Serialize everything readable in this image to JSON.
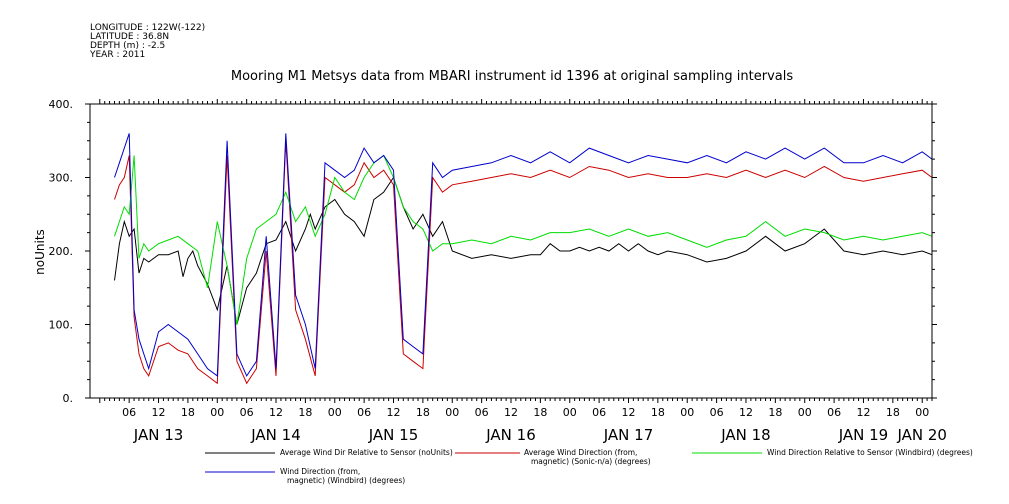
{
  "header": {
    "meta_lines": [
      "LONGITUDE : 122W(-122)",
      "LATITUDE : 36.8N",
      "DEPTH (m) : -2.5",
      "YEAR : 2011"
    ]
  },
  "chart_data": {
    "type": "line",
    "title": "Mooring M1 Metsys data from MBARI instrument id 1396 at original sampling intervals",
    "ylabel": "noUnits",
    "ylim": [
      0,
      400
    ],
    "yticks": [
      0,
      100,
      200,
      300,
      400
    ],
    "ytick_labels": [
      "0.",
      "100.",
      "200.",
      "300.",
      "400."
    ],
    "xlim_hours": [
      -21,
      0
    ],
    "x_unit": "hours from 2011-01-13 00:00",
    "hour_ticks": [
      {
        "h": 6,
        "label": "06"
      },
      {
        "h": 12,
        "label": "12"
      },
      {
        "h": 18,
        "label": "18"
      },
      {
        "h": 24,
        "label": "00"
      },
      {
        "h": 30,
        "label": "06"
      },
      {
        "h": 36,
        "label": "12"
      },
      {
        "h": 42,
        "label": "18"
      },
      {
        "h": 48,
        "label": "00"
      },
      {
        "h": 54,
        "label": "06"
      },
      {
        "h": 60,
        "label": "12"
      },
      {
        "h": 66,
        "label": "18"
      },
      {
        "h": 72,
        "label": "00"
      },
      {
        "h": 78,
        "label": "06"
      },
      {
        "h": 84,
        "label": "12"
      },
      {
        "h": 90,
        "label": "18"
      },
      {
        "h": 96,
        "label": "00"
      },
      {
        "h": 102,
        "label": "06"
      },
      {
        "h": 108,
        "label": "12"
      },
      {
        "h": 114,
        "label": "18"
      },
      {
        "h": 120,
        "label": "00"
      },
      {
        "h": 126,
        "label": "06"
      },
      {
        "h": 132,
        "label": "12"
      },
      {
        "h": 138,
        "label": "18"
      },
      {
        "h": 144,
        "label": "00"
      },
      {
        "h": 150,
        "label": "06"
      },
      {
        "h": 156,
        "label": "12"
      },
      {
        "h": 162,
        "label": "18"
      },
      {
        "h": 168,
        "label": "00"
      }
    ],
    "day_labels": [
      {
        "h": 12,
        "label": "JAN 13"
      },
      {
        "h": 36,
        "label": "JAN 14"
      },
      {
        "h": 60,
        "label": "JAN 15"
      },
      {
        "h": 84,
        "label": "JAN 16"
      },
      {
        "h": 108,
        "label": "JAN 17"
      },
      {
        "h": 132,
        "label": "JAN 18"
      },
      {
        "h": 156,
        "label": "JAN 19"
      },
      {
        "h": 168,
        "label": "JAN 20"
      }
    ],
    "series": [
      {
        "name": "Average Wind Dir Relative to Sensor (noUnits)",
        "color": "#000000",
        "x": [
          3,
          4,
          5,
          6,
          7,
          8,
          9,
          10,
          12,
          14,
          16,
          17,
          18,
          19,
          20,
          22,
          24,
          26,
          28,
          30,
          32,
          34,
          36,
          38,
          40,
          42,
          43,
          44,
          46,
          48,
          50,
          52,
          54,
          56,
          58,
          60,
          62,
          64,
          66,
          68,
          70,
          72,
          76,
          80,
          84,
          88,
          90,
          92,
          94,
          96,
          98,
          100,
          102,
          104,
          106,
          108,
          110,
          112,
          114,
          116,
          120,
          124,
          128,
          132,
          136,
          140,
          144,
          148,
          152,
          156,
          160,
          164,
          168,
          170
        ],
        "y": [
          160,
          210,
          240,
          220,
          230,
          170,
          190,
          185,
          195,
          195,
          200,
          165,
          190,
          200,
          180,
          155,
          120,
          180,
          100,
          150,
          170,
          210,
          215,
          240,
          200,
          230,
          250,
          230,
          260,
          270,
          250,
          240,
          220,
          270,
          280,
          300,
          260,
          230,
          250,
          220,
          240,
          200,
          190,
          195,
          190,
          195,
          195,
          210,
          200,
          200,
          205,
          200,
          205,
          200,
          210,
          200,
          210,
          200,
          195,
          200,
          195,
          185,
          190,
          200,
          220,
          200,
          210,
          230,
          200,
          195,
          200,
          195,
          200,
          195
        ]
      },
      {
        "name": "Average Wind Direction (from, magnetic) (Sonic-n/a) (degrees)",
        "color": "#cc0000",
        "x": [
          3,
          4,
          5,
          6,
          7,
          8,
          9,
          10,
          12,
          14,
          16,
          18,
          20,
          22,
          24,
          26,
          28,
          30,
          32,
          34,
          36,
          38,
          40,
          42,
          44,
          46,
          48,
          50,
          52,
          54,
          56,
          58,
          60,
          62,
          64,
          66,
          68,
          70,
          72,
          76,
          80,
          84,
          88,
          92,
          96,
          100,
          104,
          108,
          112,
          116,
          120,
          124,
          128,
          132,
          136,
          140,
          144,
          148,
          152,
          156,
          160,
          164,
          168,
          170
        ],
        "y": [
          270,
          290,
          300,
          330,
          110,
          60,
          40,
          30,
          70,
          75,
          65,
          60,
          40,
          30,
          20,
          330,
          50,
          20,
          40,
          200,
          30,
          350,
          120,
          80,
          30,
          300,
          290,
          280,
          290,
          320,
          300,
          310,
          290,
          60,
          50,
          40,
          300,
          280,
          290,
          295,
          300,
          305,
          300,
          310,
          300,
          315,
          310,
          300,
          305,
          300,
          300,
          305,
          300,
          310,
          300,
          310,
          300,
          315,
          300,
          295,
          300,
          305,
          310,
          300
        ]
      },
      {
        "name": "Wind Direction Relative to Sensor (Windbird) (degrees)",
        "color": "#00dd00",
        "x": [
          3,
          4,
          5,
          6,
          7,
          8,
          9,
          10,
          12,
          14,
          16,
          18,
          20,
          22,
          24,
          26,
          28,
          30,
          32,
          34,
          36,
          38,
          40,
          42,
          44,
          46,
          48,
          50,
          52,
          54,
          56,
          58,
          60,
          62,
          64,
          66,
          68,
          70,
          72,
          76,
          80,
          84,
          88,
          92,
          96,
          100,
          104,
          108,
          112,
          116,
          120,
          124,
          128,
          132,
          136,
          140,
          144,
          148,
          152,
          156,
          160,
          164,
          168,
          170
        ],
        "y": [
          220,
          240,
          260,
          250,
          330,
          190,
          210,
          200,
          210,
          215,
          220,
          210,
          200,
          150,
          240,
          180,
          100,
          190,
          230,
          240,
          250,
          280,
          240,
          260,
          220,
          250,
          300,
          280,
          270,
          300,
          320,
          330,
          300,
          260,
          240,
          230,
          200,
          210,
          210,
          215,
          210,
          220,
          215,
          225,
          225,
          230,
          220,
          230,
          220,
          225,
          215,
          205,
          215,
          220,
          240,
          220,
          230,
          225,
          215,
          220,
          215,
          220,
          225,
          220
        ]
      },
      {
        "name": "Wind Direction (from, magnetic) (Windbird) (degrees)",
        "color": "#0000cc",
        "x": [
          3,
          4,
          5,
          6,
          7,
          8,
          9,
          10,
          12,
          14,
          16,
          18,
          20,
          22,
          24,
          26,
          28,
          30,
          32,
          34,
          36,
          38,
          40,
          42,
          44,
          46,
          48,
          50,
          52,
          54,
          56,
          58,
          60,
          62,
          64,
          66,
          68,
          70,
          72,
          76,
          80,
          84,
          88,
          92,
          96,
          100,
          104,
          108,
          112,
          116,
          120,
          124,
          128,
          132,
          136,
          140,
          144,
          148,
          152,
          156,
          160,
          164,
          168,
          170
        ],
        "y": [
          300,
          320,
          340,
          360,
          120,
          80,
          60,
          40,
          90,
          100,
          90,
          80,
          60,
          40,
          30,
          350,
          60,
          30,
          50,
          220,
          40,
          360,
          140,
          100,
          40,
          320,
          310,
          300,
          310,
          340,
          320,
          330,
          310,
          80,
          70,
          60,
          320,
          300,
          310,
          315,
          320,
          330,
          320,
          335,
          320,
          340,
          330,
          320,
          330,
          325,
          320,
          330,
          320,
          335,
          325,
          340,
          325,
          340,
          320,
          320,
          330,
          320,
          335,
          325
        ]
      }
    ]
  },
  "legend": {
    "entries": [
      {
        "lines": [
          "Average Wind Dir Relative to Sensor (noUnits)"
        ]
      },
      {
        "lines": [
          "Average Wind Direction (from,",
          "magnetic) (Sonic-n/a) (degrees)"
        ]
      },
      {
        "lines": [
          "Wind Direction Relative to Sensor (Windbird) (degrees)"
        ]
      },
      {
        "lines": [
          "Wind Direction (from,",
          "magnetic) (Windbird) (degrees)"
        ]
      }
    ]
  }
}
